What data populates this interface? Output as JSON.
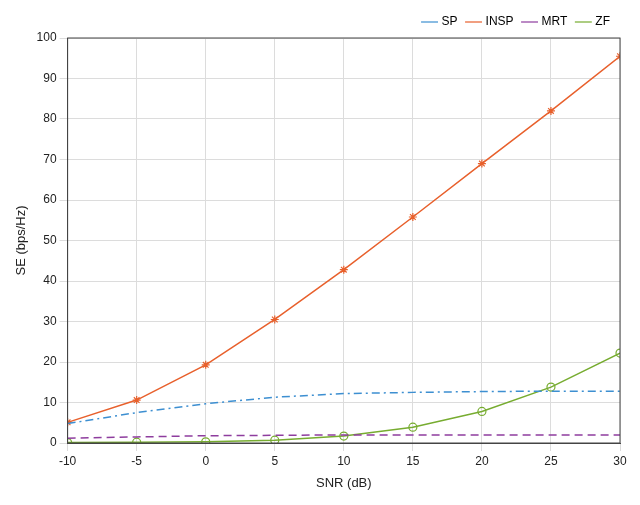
{
  "chart_data": {
    "type": "line",
    "x_label": "SNR (dB)",
    "y_label": "SE (bps/Hz)",
    "x": [
      -10,
      -5,
      0,
      5,
      10,
      15,
      20,
      25,
      30
    ],
    "series": [
      {
        "name": "SP",
        "color": "#3d8fd1",
        "line_style": "dashdot",
        "marker": "none",
        "values": [
          4.8,
          7.5,
          9.7,
          11.3,
          12.2,
          12.5,
          12.7,
          12.8,
          12.8
        ]
      },
      {
        "name": "INSP",
        "color": "#e8602c",
        "line_style": "solid",
        "marker": "star",
        "values": [
          5.1,
          10.6,
          19.3,
          30.5,
          42.8,
          55.8,
          69.0,
          82.0,
          95.5
        ]
      },
      {
        "name": "MRT",
        "color": "#8e3d9e",
        "line_style": "dashed",
        "marker": "none",
        "values": [
          1.2,
          1.5,
          1.8,
          1.9,
          2.0,
          2.0,
          2.0,
          2.0,
          2.0
        ]
      },
      {
        "name": "ZF",
        "color": "#77ac30",
        "line_style": "solid",
        "marker": "circle",
        "values": [
          0.1,
          0.2,
          0.3,
          0.7,
          1.7,
          3.9,
          7.8,
          13.8,
          22.2
        ]
      }
    ],
    "xlim": [
      -10,
      30
    ],
    "xticks": [
      -10,
      -5,
      0,
      5,
      10,
      15,
      20,
      25,
      30
    ],
    "ylim": [
      0,
      100
    ],
    "yticks": [
      0,
      10,
      20,
      30,
      40,
      50,
      60,
      70,
      80,
      90,
      100
    ],
    "grid": true,
    "legend": "top-right"
  }
}
